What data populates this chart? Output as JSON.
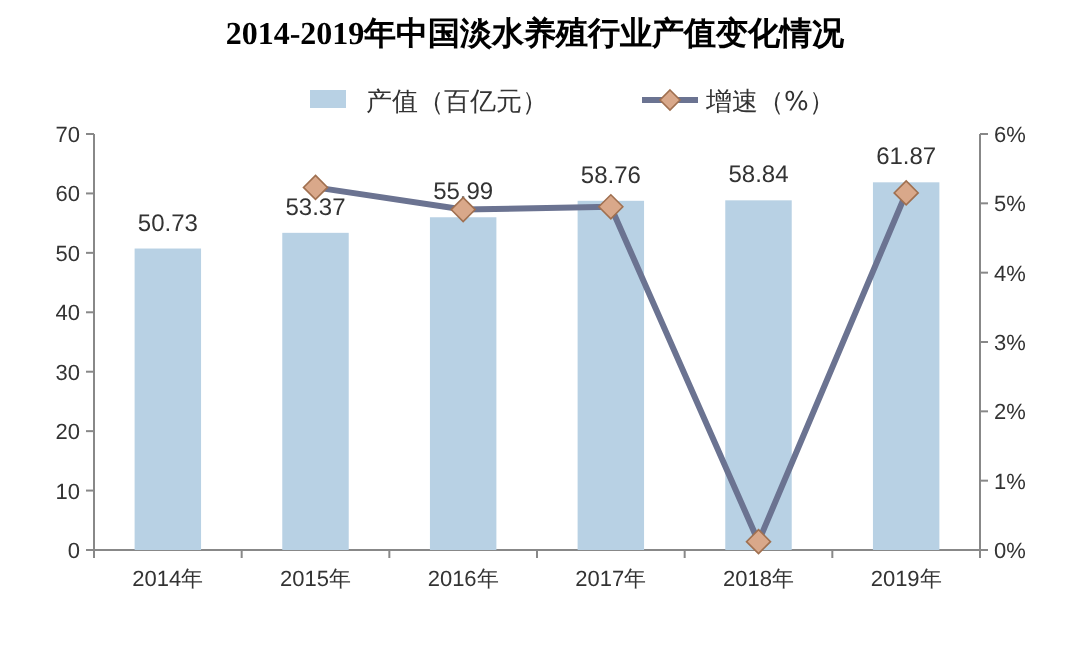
{
  "chart_data": {
    "type": "bar",
    "title": "2014-2019年中国淡水养殖行业产值变化情况",
    "categories": [
      "2014年",
      "2015年",
      "2016年",
      "2017年",
      "2018年",
      "2019年"
    ],
    "series": [
      {
        "name": "产值（百亿元）",
        "color": "#b8d1e4",
        "values": [
          50.73,
          53.37,
          55.99,
          58.76,
          58.84,
          61.87
        ],
        "value_labels": [
          "50.73",
          "53.37",
          "55.99",
          "58.76",
          "58.84",
          "61.87"
        ]
      },
      {
        "name": "增速（%）",
        "type": "line",
        "axis": "y2",
        "marker": "diamond",
        "color": "#6b7391",
        "values": [
          null,
          5.23,
          4.91,
          4.95,
          0.12,
          5.15
        ]
      }
    ],
    "ylim": [
      0,
      70
    ],
    "yticks": [
      0,
      10,
      20,
      30,
      40,
      50,
      60,
      70
    ],
    "y2lim": [
      0,
      6
    ],
    "y2ticks": [
      {
        "value": 0,
        "label": "0%"
      },
      {
        "value": 1,
        "label": "1%"
      },
      {
        "value": 2,
        "label": "2%"
      },
      {
        "value": 3,
        "label": "3%"
      },
      {
        "value": 4,
        "label": "4%"
      },
      {
        "value": 5,
        "label": "5%"
      },
      {
        "value": 6,
        "label": "6%"
      }
    ],
    "legend": "top"
  }
}
